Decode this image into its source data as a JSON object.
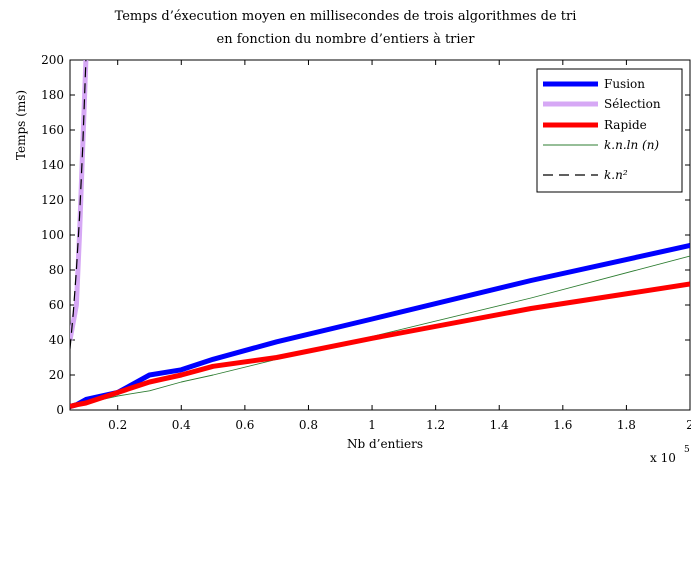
{
  "chart_data": {
    "type": "line",
    "title_line1": "Temps d’éxecution moyen en millisecondes de trois algorithmes de tri",
    "title_line2": "en fonction du nombre d’entiers à trier",
    "xlabel": "Nb d’entiers",
    "ylabel": "Temps (ms)",
    "x_multiplier": "x 10",
    "x_multiplier_exp": "5",
    "xlim": [
      0.05,
      2.0
    ],
    "ylim": [
      0,
      200
    ],
    "xticks": [
      0.2,
      0.4,
      0.6,
      0.8,
      1,
      1.2,
      1.4,
      1.6,
      1.8,
      2
    ],
    "xtick_labels": [
      "0.2",
      "0.4",
      "0.6",
      "0.8",
      "1",
      "1.2",
      "1.4",
      "1.6",
      "1.8",
      "2"
    ],
    "yticks": [
      0,
      20,
      40,
      60,
      80,
      100,
      120,
      140,
      160,
      180,
      200
    ],
    "ytick_labels": [
      "0",
      "20",
      "40",
      "60",
      "80",
      "100",
      "120",
      "140",
      "160",
      "180",
      "200"
    ],
    "grid": false,
    "legend_position": "top-right",
    "series": [
      {
        "name": "Fusion",
        "color": "#0000ff",
        "style": "thick",
        "x": [
          0.05,
          0.07,
          0.1,
          0.2,
          0.3,
          0.4,
          0.5,
          0.7,
          1.0,
          1.5,
          2.0
        ],
        "y": [
          2,
          3,
          6,
          10,
          20,
          23,
          29,
          39,
          52,
          74,
          94
        ]
      },
      {
        "name": "Sélection",
        "color": "#d6a8f5",
        "style": "thick",
        "x": [
          0.05,
          0.07,
          0.08,
          0.09,
          0.1
        ],
        "y": [
          40,
          60,
          100,
          150,
          200
        ]
      },
      {
        "name": "Rapide",
        "color": "#ff0000",
        "style": "thick",
        "x": [
          0.05,
          0.07,
          0.1,
          0.2,
          0.3,
          0.4,
          0.5,
          0.7,
          1.0,
          1.5,
          2.0
        ],
        "y": [
          2,
          3,
          4,
          10,
          16,
          20,
          25,
          30,
          41,
          58,
          72
        ]
      },
      {
        "name": "k.n.ln (n)",
        "color": "#2e7d32",
        "style": "thin",
        "x": [
          0.05,
          0.1,
          0.2,
          0.3,
          0.4,
          0.5,
          0.7,
          1.0,
          1.5,
          2.0
        ],
        "y": [
          2,
          4,
          8,
          11,
          16,
          20,
          29,
          42,
          64,
          88
        ]
      },
      {
        "name": "k.n²",
        "color": "#000000",
        "style": "dashed",
        "x": [
          0.05,
          0.06,
          0.07,
          0.08,
          0.09,
          0.1
        ],
        "y": [
          35,
          55,
          80,
          110,
          150,
          200
        ]
      }
    ]
  }
}
